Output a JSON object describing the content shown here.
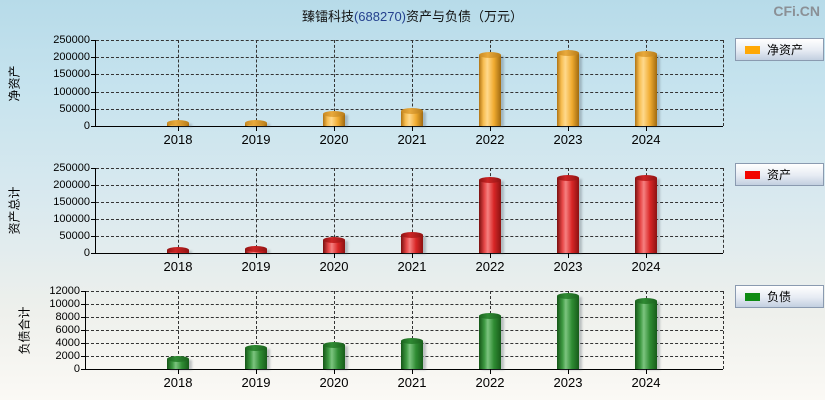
{
  "header": {
    "title_prefix": "臻镭科技",
    "title_code": "(688270)",
    "title_suffix": "资产与负债（万元）",
    "logo": "CFi.CN"
  },
  "chart_data": [
    {
      "type": "bar",
      "title": "净资产",
      "ylabel": "净资产",
      "legend_label": "净资产",
      "legend_position": "right",
      "color": "#FFA805",
      "grid": true,
      "categories": [
        "2018",
        "2019",
        "2020",
        "2021",
        "2022",
        "2023",
        "2024"
      ],
      "values": [
        8000,
        8500,
        35000,
        45000,
        206000,
        211000,
        210000
      ],
      "ylim": [
        0,
        250000
      ],
      "y_ticks": [
        0,
        50000,
        100000,
        150000,
        200000,
        250000
      ]
    },
    {
      "type": "bar",
      "title": "资产",
      "ylabel": "资产总计",
      "legend_label": "资产",
      "legend_position": "right",
      "color": "#F20500",
      "grid": true,
      "categories": [
        "2018",
        "2019",
        "2020",
        "2021",
        "2022",
        "2023",
        "2024"
      ],
      "values": [
        10000,
        12000,
        38000,
        52000,
        215000,
        222000,
        221000
      ],
      "ylim": [
        0,
        250000
      ],
      "y_ticks": [
        0,
        50000,
        100000,
        150000,
        200000,
        250000
      ]
    },
    {
      "type": "bar",
      "title": "负债",
      "ylabel": "负债合计",
      "legend_label": "负债",
      "legend_position": "right",
      "color": "#0E8B14",
      "grid": true,
      "categories": [
        "2018",
        "2019",
        "2020",
        "2021",
        "2022",
        "2023",
        "2024"
      ],
      "values": [
        1500,
        3300,
        3700,
        4300,
        8100,
        11300,
        10500
      ],
      "ylim": [
        0,
        12000
      ],
      "y_ticks": [
        0,
        2000,
        4000,
        6000,
        8000,
        10000,
        12000
      ]
    }
  ]
}
